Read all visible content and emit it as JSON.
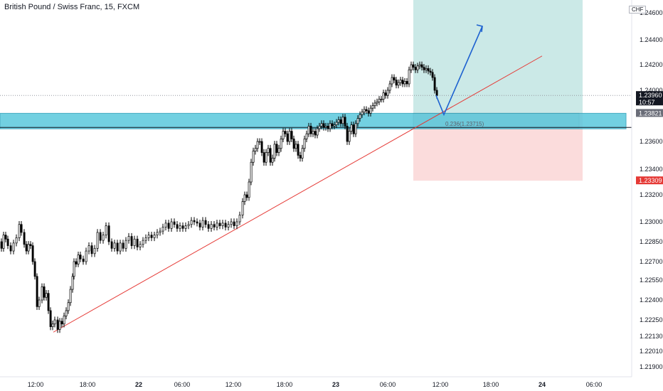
{
  "header": {
    "title": "British Pound / Swiss Franc, 15, FXCM"
  },
  "currency_label": "CHF",
  "chart_data": {
    "type": "candlestick",
    "title": "British Pound / Swiss Franc, 15, FXCM",
    "y_ticks": [
      1.246,
      1.244,
      1.242,
      1.24,
      1.236,
      1.234,
      1.232,
      1.23,
      1.2285,
      1.227,
      1.2255,
      1.224,
      1.2225,
      1.2213,
      1.2201,
      1.219
    ],
    "y_tick_labels": [
      "1.24600",
      "1.24400",
      "1.24200",
      "1.24000",
      "1.23600",
      "1.23400",
      "1.23200",
      "1.23000",
      "1.22850",
      "1.22700",
      "1.22550",
      "1.22400",
      "1.22250",
      "1.22130",
      "1.22010",
      "1.21900"
    ],
    "x_ticks": [
      "12:00",
      "18:00",
      "22",
      "06:00",
      "12:00",
      "18:00",
      "23",
      "06:00",
      "12:00",
      "18:00",
      "24",
      "06:00"
    ],
    "x_bold": [
      "22",
      "23",
      "24"
    ],
    "price_path": [
      [
        0,
        1.2285
      ],
      [
        3,
        1.228
      ],
      [
        6,
        1.229
      ],
      [
        9,
        1.2287
      ],
      [
        12,
        1.2282
      ],
      [
        16,
        1.2278
      ],
      [
        20,
        1.2284
      ],
      [
        24,
        1.2288
      ],
      [
        28,
        1.2298
      ],
      [
        31,
        1.2292
      ],
      [
        35,
        1.2283
      ],
      [
        38,
        1.2278
      ],
      [
        41,
        1.2283
      ],
      [
        44,
        1.2282
      ],
      [
        47,
        1.227
      ],
      [
        50,
        1.2258
      ],
      [
        53,
        1.2235
      ],
      [
        56,
        1.224
      ],
      [
        60,
        1.225
      ],
      [
        63,
        1.2242
      ],
      [
        66,
        1.2245
      ],
      [
        69,
        1.2232
      ],
      [
        72,
        1.222
      ],
      [
        75,
        1.2222
      ],
      [
        78,
        1.2225
      ],
      [
        82,
        1.2218
      ],
      [
        85,
        1.2224
      ],
      [
        88,
        1.2222
      ],
      [
        91,
        1.2228
      ],
      [
        94,
        1.2232
      ],
      [
        97,
        1.2238
      ],
      [
        100,
        1.2248
      ],
      [
        103,
        1.2258
      ],
      [
        105,
        1.227
      ],
      [
        108,
        1.2268
      ],
      [
        111,
        1.2275
      ],
      [
        114,
        1.2272
      ],
      [
        118,
        1.227
      ],
      [
        122,
        1.2278
      ],
      [
        126,
        1.2282
      ],
      [
        130,
        1.2276
      ],
      [
        134,
        1.228
      ],
      [
        138,
        1.2292
      ],
      [
        142,
        1.2286
      ],
      [
        146,
        1.229
      ],
      [
        150,
        1.2297
      ],
      [
        154,
        1.2285
      ],
      [
        158,
        1.228
      ],
      [
        162,
        1.2284
      ],
      [
        166,
        1.2278
      ],
      [
        170,
        1.2284
      ],
      [
        174,
        1.228
      ],
      [
        178,
        1.2286
      ],
      [
        182,
        1.2289
      ],
      [
        186,
        1.2282
      ],
      [
        190,
        1.2287
      ],
      [
        194,
        1.2281
      ],
      [
        198,
        1.2283
      ],
      [
        202,
        1.2286
      ],
      [
        206,
        1.2288
      ],
      [
        210,
        1.229
      ],
      [
        214,
        1.2288
      ],
      [
        218,
        1.229
      ],
      [
        222,
        1.2292
      ],
      [
        226,
        1.2293
      ],
      [
        230,
        1.2296
      ],
      [
        234,
        1.2299
      ],
      [
        238,
        1.2295
      ],
      [
        242,
        1.23
      ],
      [
        246,
        1.2298
      ],
      [
        250,
        1.2295
      ],
      [
        254,
        1.2297
      ],
      [
        258,
        1.2295
      ],
      [
        262,
        1.2297
      ],
      [
        266,
        1.2298
      ],
      [
        270,
        1.2301
      ],
      [
        274,
        1.23
      ],
      [
        278,
        1.2299
      ],
      [
        282,
        1.2296
      ],
      [
        286,
        1.2301
      ],
      [
        290,
        1.2298
      ],
      [
        294,
        1.2295
      ],
      [
        298,
        1.2298
      ],
      [
        302,
        1.2296
      ],
      [
        306,
        1.2299
      ],
      [
        310,
        1.2297
      ],
      [
        314,
        1.2299
      ],
      [
        318,
        1.2296
      ],
      [
        322,
        1.2298
      ],
      [
        326,
        1.23
      ],
      [
        330,
        1.2297
      ],
      [
        334,
        1.23
      ],
      [
        338,
        1.2305
      ],
      [
        342,
        1.2315
      ],
      [
        345,
        1.232
      ],
      [
        348,
        1.2318
      ],
      [
        351,
        1.233
      ],
      [
        354,
        1.2345
      ],
      [
        357,
        1.2353
      ],
      [
        360,
        1.2355
      ],
      [
        363,
        1.236
      ],
      [
        366,
        1.236
      ],
      [
        369,
        1.2352
      ],
      [
        372,
        1.2345
      ],
      [
        375,
        1.2352
      ],
      [
        378,
        1.2355
      ],
      [
        381,
        1.2345
      ],
      [
        384,
        1.2348
      ],
      [
        387,
        1.2358
      ],
      [
        390,
        1.2352
      ],
      [
        393,
        1.2355
      ],
      [
        396,
        1.2362
      ],
      [
        399,
        1.2368
      ],
      [
        402,
        1.2366
      ],
      [
        405,
        1.236
      ],
      [
        408,
        1.2368
      ],
      [
        411,
        1.2362
      ],
      [
        414,
        1.2355
      ],
      [
        417,
        1.2358
      ],
      [
        420,
        1.235
      ],
      [
        423,
        1.2348
      ],
      [
        426,
        1.2355
      ],
      [
        429,
        1.2362
      ],
      [
        432,
        1.2366
      ],
      [
        435,
        1.2372
      ],
      [
        438,
        1.2366
      ],
      [
        441,
        1.2368
      ],
      [
        444,
        1.2365
      ],
      [
        447,
        1.237
      ],
      [
        450,
        1.2372
      ],
      [
        453,
        1.2374
      ],
      [
        456,
        1.2371
      ],
      [
        459,
        1.2372
      ],
      [
        462,
        1.237
      ],
      [
        465,
        1.2374
      ],
      [
        468,
        1.2372
      ],
      [
        471,
        1.2373
      ],
      [
        474,
        1.2375
      ],
      [
        477,
        1.2377
      ],
      [
        480,
        1.2374
      ],
      [
        483,
        1.2379
      ],
      [
        486,
        1.2372
      ],
      [
        489,
        1.236
      ],
      [
        492,
        1.2368
      ],
      [
        495,
        1.2373
      ],
      [
        498,
        1.2366
      ],
      [
        501,
        1.2374
      ],
      [
        504,
        1.2378
      ],
      [
        507,
        1.2381
      ],
      [
        510,
        1.2383
      ],
      [
        513,
        1.2385
      ],
      [
        516,
        1.2384
      ],
      [
        519,
        1.2382
      ],
      [
        522,
        1.2386
      ],
      [
        525,
        1.2388
      ],
      [
        528,
        1.239
      ],
      [
        531,
        1.2391
      ],
      [
        534,
        1.2393
      ],
      [
        537,
        1.2393
      ],
      [
        540,
        1.2398
      ],
      [
        543,
        1.2396
      ],
      [
        546,
        1.24
      ],
      [
        549,
        1.2405
      ],
      [
        552,
        1.241
      ],
      [
        555,
        1.2408
      ],
      [
        558,
        1.2404
      ],
      [
        561,
        1.2406
      ],
      [
        564,
        1.2408
      ],
      [
        567,
        1.2405
      ],
      [
        570,
        1.2407
      ],
      [
        573,
        1.2405
      ],
      [
        576,
        1.2416
      ],
      [
        579,
        1.242
      ],
      [
        582,
        1.2418
      ],
      [
        585,
        1.2416
      ],
      [
        588,
        1.2419
      ],
      [
        591,
        1.242
      ],
      [
        594,
        1.2418
      ],
      [
        597,
        1.2416
      ],
      [
        600,
        1.2417
      ],
      [
        603,
        1.2415
      ],
      [
        606,
        1.2414
      ],
      [
        609,
        1.241
      ],
      [
        612,
        1.24
      ],
      [
        615,
        1.2396
      ]
    ],
    "support_zone": {
      "top": 1.2382,
      "bottom": 1.2371
    },
    "horizontal_line": 1.2371,
    "current_price": 1.2396,
    "current_price_label": "1.23960",
    "countdown": "10:57",
    "target_price_label": "1.23821",
    "stop_price_label": "1.23309",
    "fib_label": "0.236(1.23715)",
    "long_position": {
      "entry": 1.2382,
      "target": 1.2468,
      "stop": 1.2331
    },
    "trendline": {
      "start_price": 1.2216,
      "end_price": 1.2427
    },
    "projection": {
      "start_price": 1.2396,
      "mid_price": 1.2381,
      "end_price": 1.245
    },
    "colors": {
      "bull": "#ffffff",
      "bear": "#000000",
      "wick": "#000000",
      "zone": "#5ac8dc",
      "target_zone": "#cbe9e7",
      "stop_zone": "#fbdcdc",
      "trendline": "#e53935",
      "arrow": "#1e62d0",
      "tag_dark": "#131722",
      "tag_grey": "#6a6d78",
      "tag_red": "#e53935"
    }
  }
}
